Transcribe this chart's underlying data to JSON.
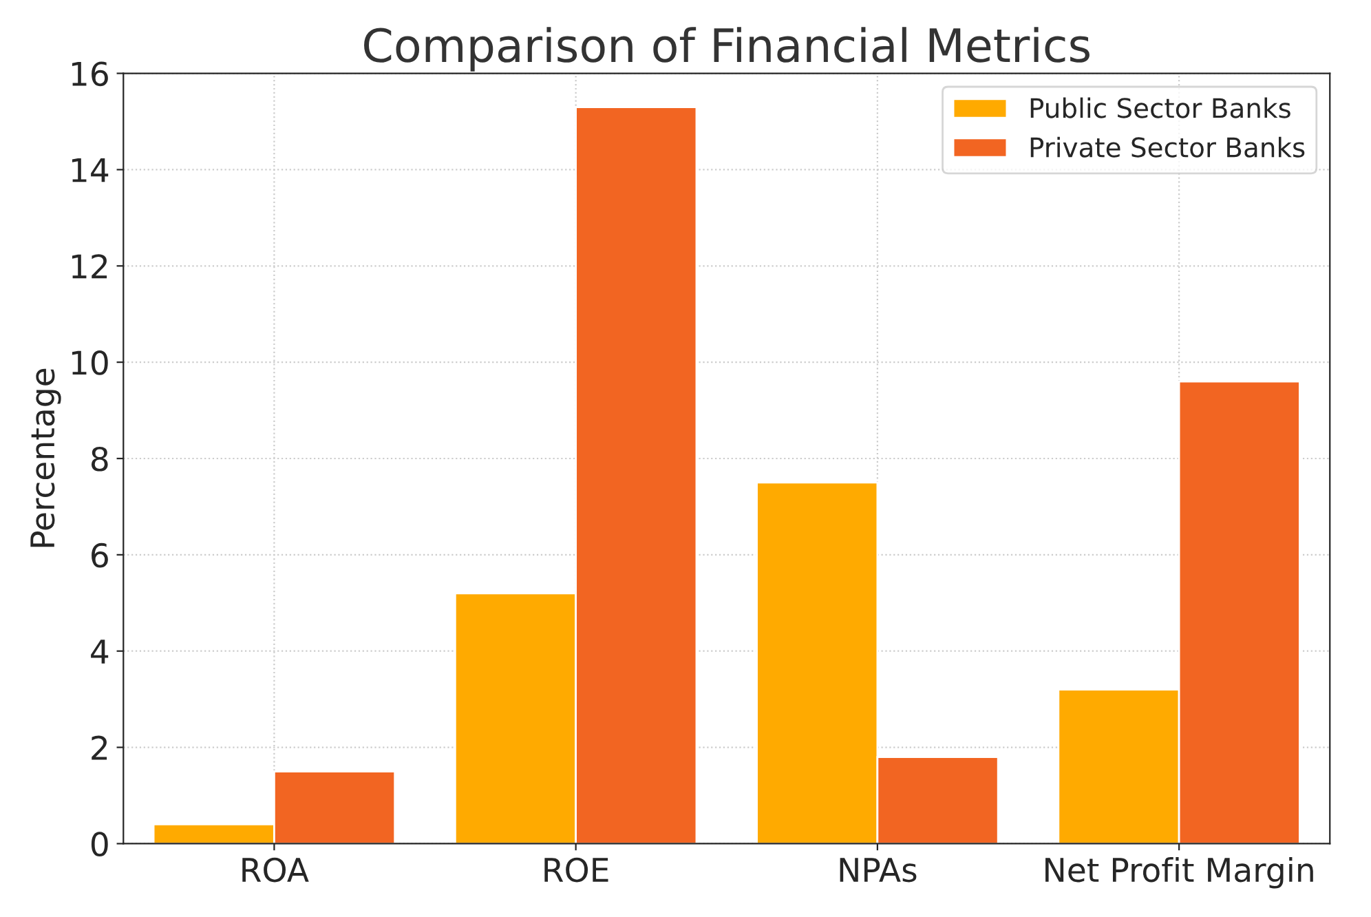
{
  "chart_data": {
    "type": "bar",
    "title": "Comparison of Financial Metrics",
    "ylabel": "Percentage",
    "categories": [
      "ROA",
      "ROE",
      "NPAs",
      "Net Profit Margin"
    ],
    "series": [
      {
        "name": "Public Sector Banks",
        "color": "#ffaa00",
        "values": [
          0.4,
          5.2,
          7.5,
          3.2
        ]
      },
      {
        "name": "Private Sector Banks",
        "color": "#f26522",
        "values": [
          1.5,
          15.3,
          1.8,
          9.6
        ]
      }
    ],
    "ylim": [
      0,
      16
    ],
    "yticks": [
      0,
      2,
      4,
      6,
      8,
      10,
      12,
      14,
      16
    ],
    "grid": true,
    "legend": "top right"
  }
}
